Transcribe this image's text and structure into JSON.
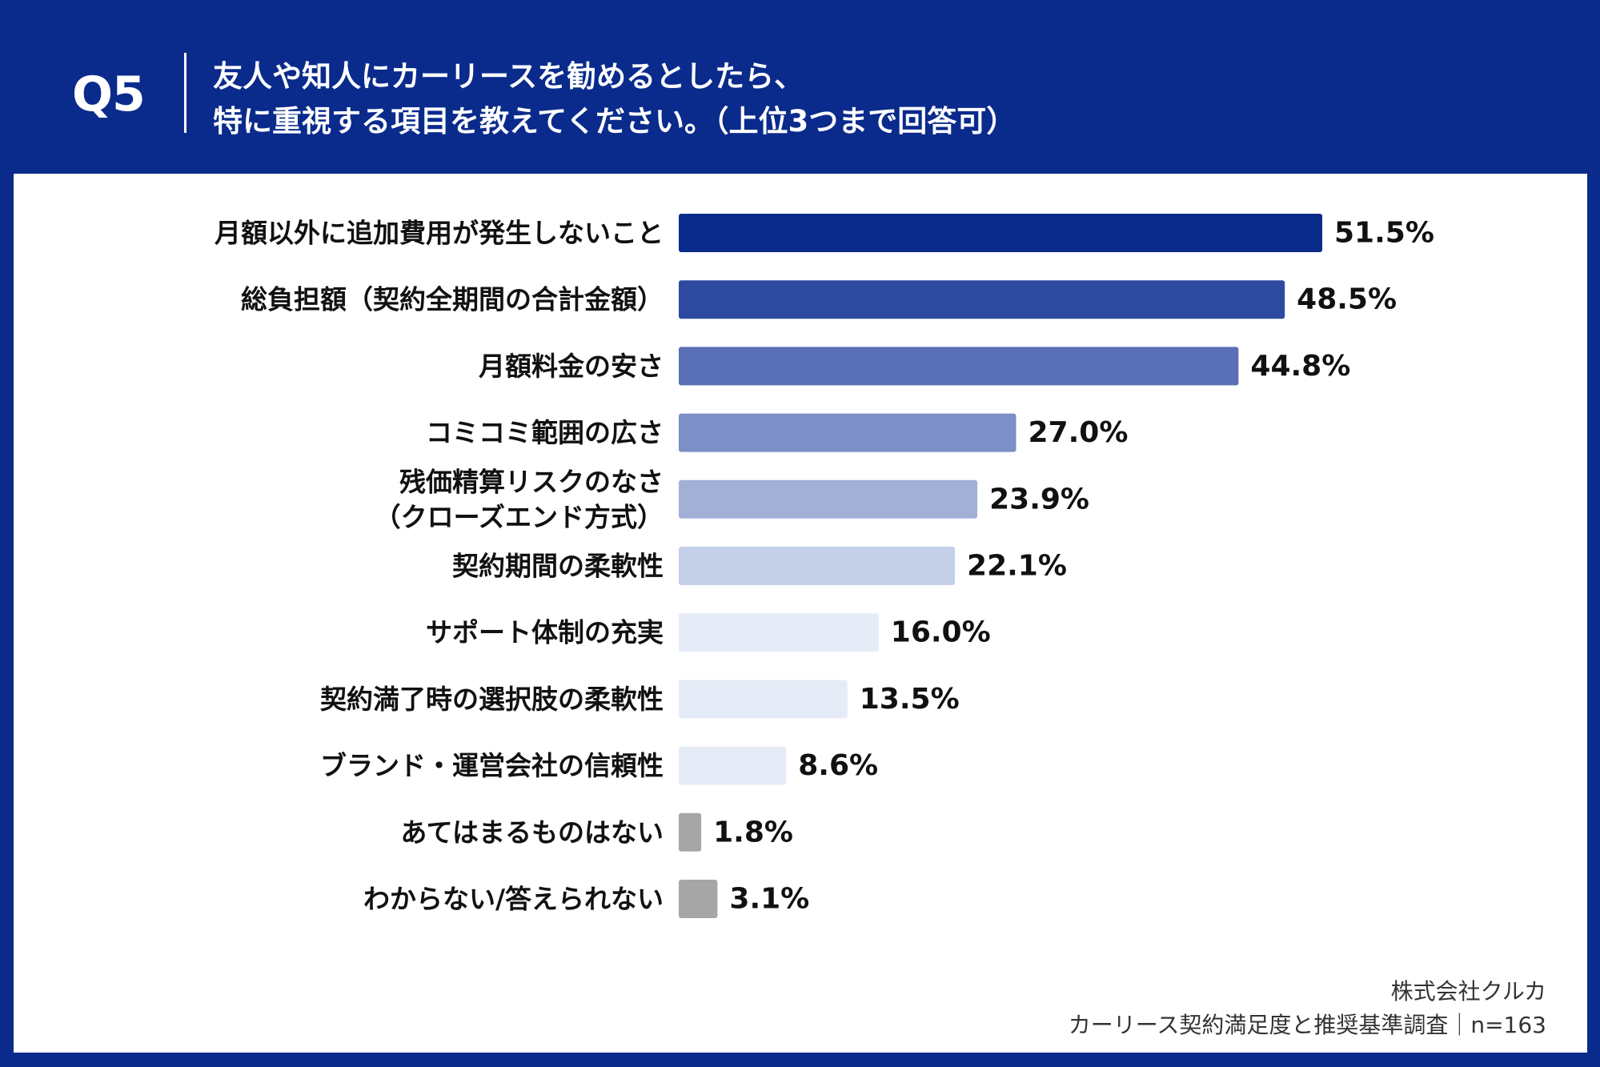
{
  "header": {
    "question_number": "Q5",
    "title_line1": "友人や知人にカーリースを勧めるとしたら、",
    "title_line2": "特に重視する項目を教えてください。（上位3つまで回答可）"
  },
  "footer": {
    "company": "株式会社クルカ",
    "survey": "カーリース契約満足度と推奨基準調査｜n=163"
  },
  "colors": {
    "header_bg": "#0a2b8c",
    "panel_bg": "#ffffff",
    "gray_bar": "#a6a6a6"
  },
  "chart_data": {
    "type": "bar",
    "orientation": "horizontal",
    "categories": [
      [
        "月額以外に追加費用が発生しないこと"
      ],
      [
        "総負担額（契約全期間の合計金額）"
      ],
      [
        "月額料金の安さ"
      ],
      [
        "コミコミ範囲の広さ"
      ],
      [
        "残価精算リスクのなさ",
        "（クローズエンド方式）"
      ],
      [
        "契約期間の柔軟性"
      ],
      [
        "サポート体制の充実"
      ],
      [
        "契約満了時の選択肢の柔軟性"
      ],
      [
        "ブランド・運営会社の信頼性"
      ],
      [
        "あてはまるものはない"
      ],
      [
        "わからない/答えられない"
      ]
    ],
    "values": [
      51.5,
      48.5,
      44.8,
      27.0,
      23.9,
      22.1,
      16.0,
      13.5,
      8.6,
      1.8,
      3.1
    ],
    "value_labels": [
      "51.5%",
      "48.5%",
      "44.8%",
      "27.0%",
      "23.9%",
      "22.1%",
      "16.0%",
      "13.5%",
      "8.6%",
      "1.8%",
      "3.1%"
    ],
    "bar_colors": [
      "#0a2b8c",
      "#2e4aa0",
      "#5a70b6",
      "#7c8fc6",
      "#a2b0d8",
      "#c4cfe8",
      "#e6ecf7",
      "#e6ecf7",
      "#e6ecf7",
      "#a6a6a6",
      "#a6a6a6"
    ],
    "unit": "%",
    "xlim": [
      0,
      51.5
    ],
    "grid": false,
    "legend": "none"
  }
}
